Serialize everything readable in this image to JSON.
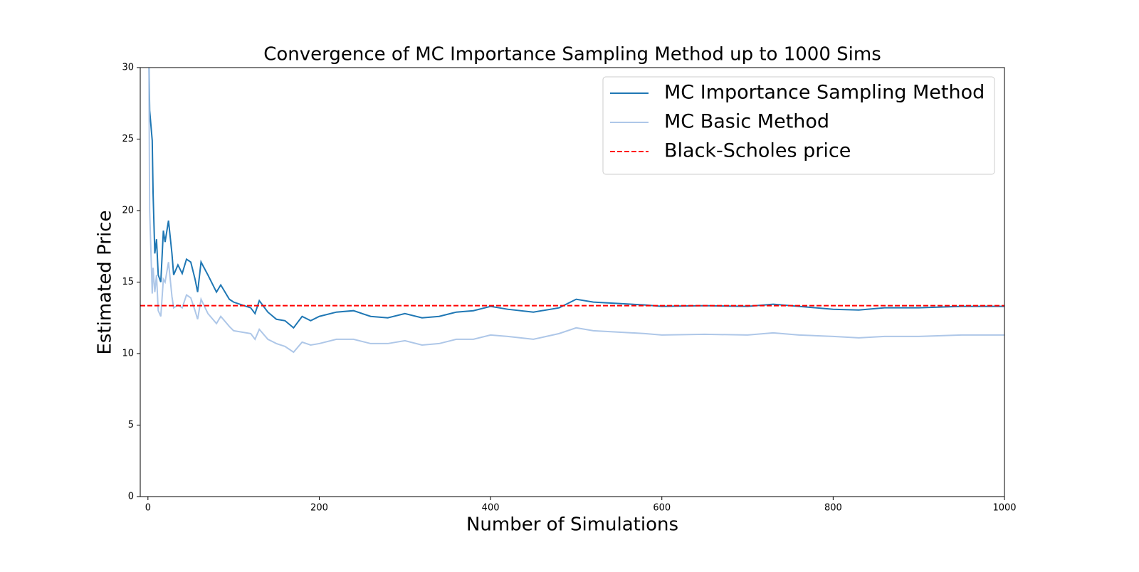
{
  "chart_data": {
    "type": "line",
    "title": "Convergence of MC Importance Sampling Method up to 1000 Sims",
    "xlabel": "Number of Simulations",
    "ylabel": "Estimated Price",
    "x": [
      1,
      2,
      5,
      6,
      8,
      10,
      12,
      15,
      18,
      20,
      24,
      28,
      30,
      35,
      40,
      45,
      50,
      55,
      58,
      62,
      70,
      80,
      85,
      95,
      100,
      110,
      120,
      125,
      130,
      140,
      150,
      160,
      170,
      180,
      190,
      200,
      220,
      240,
      260,
      280,
      300,
      320,
      340,
      360,
      380,
      400,
      420,
      450,
      480,
      500,
      520,
      550,
      580,
      600,
      650,
      700,
      730,
      760,
      800,
      830,
      860,
      900,
      950,
      1000
    ],
    "series": [
      {
        "name": "MC Importance Sampling Method",
        "color": "#1f77b4",
        "values": [
          31,
          27,
          24.9,
          21.2,
          17,
          18,
          15.5,
          15,
          18.6,
          17.8,
          19.3,
          17,
          15.5,
          16.2,
          15.6,
          16.6,
          16.4,
          15.2,
          14.3,
          16.4,
          15.5,
          14.3,
          14.8,
          13.8,
          13.6,
          13.4,
          13.2,
          12.8,
          13.7,
          12.9,
          12.4,
          12.3,
          11.8,
          12.6,
          12.3,
          12.6,
          12.9,
          13.0,
          12.6,
          12.5,
          12.8,
          12.5,
          12.6,
          12.9,
          13.0,
          13.3,
          13.1,
          12.9,
          13.2,
          13.8,
          13.6,
          13.5,
          13.4,
          13.3,
          13.35,
          13.3,
          13.45,
          13.3,
          13.1,
          13.05,
          13.2,
          13.2,
          13.3,
          13.3
        ]
      },
      {
        "name": "MC Basic Method",
        "color": "#aec7e8",
        "values": [
          31,
          20,
          14.2,
          16,
          14.3,
          15.5,
          13,
          12.6,
          15.2,
          15,
          16.4,
          14,
          13.2,
          13.4,
          13.2,
          14.1,
          13.9,
          13,
          12.4,
          13.8,
          12.8,
          12.1,
          12.6,
          11.9,
          11.6,
          11.5,
          11.4,
          11.0,
          11.7,
          11.0,
          10.7,
          10.5,
          10.1,
          10.8,
          10.6,
          10.7,
          11.0,
          11.0,
          10.7,
          10.7,
          10.9,
          10.6,
          10.7,
          11.0,
          11.0,
          11.3,
          11.2,
          11.0,
          11.4,
          11.8,
          11.6,
          11.5,
          11.4,
          11.3,
          11.35,
          11.3,
          11.45,
          11.3,
          11.2,
          11.1,
          11.2,
          11.2,
          11.3,
          11.3
        ]
      }
    ],
    "hlines": [
      {
        "name": "Black-Scholes price",
        "color": "red",
        "value": 13.35,
        "style": "dashed"
      }
    ],
    "xlim": [
      -9,
      1000
    ],
    "xticks": [
      0,
      200,
      400,
      600,
      800,
      1000
    ],
    "ylim": [
      0,
      30
    ],
    "yticks": [
      0,
      5,
      10,
      15,
      20,
      25,
      30
    ],
    "legend": "upper right",
    "grid": false
  }
}
